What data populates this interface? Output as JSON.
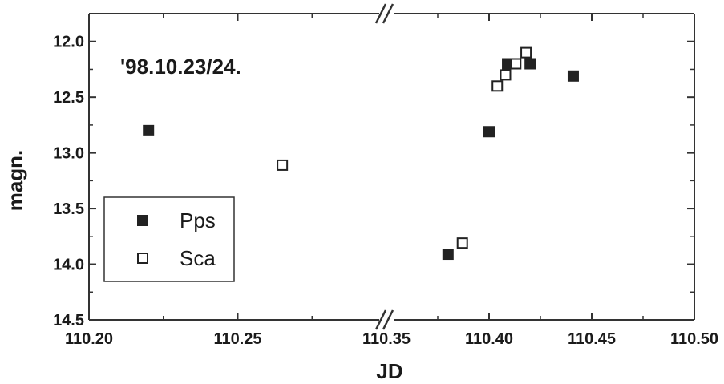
{
  "chart_data": {
    "type": "scatter",
    "title": "",
    "xlabel": "JD",
    "ylabel": "magn.",
    "annotation": "'98.10.23/24.",
    "x_segments": [
      {
        "xlim": [
          110.2,
          110.3
        ],
        "ticks": [
          110.2,
          110.25
        ],
        "tick_labels": [
          "110.20",
          "110.25"
        ]
      },
      {
        "xlim": [
          110.35,
          110.5
        ],
        "ticks": [
          110.35,
          110.4,
          110.45,
          110.5
        ],
        "tick_labels": [
          "110.35",
          "110.40",
          "110.45",
          "110.50"
        ]
      }
    ],
    "axis_break": true,
    "ylim": [
      14.5,
      11.75
    ],
    "y_inverted": true,
    "yticks": [
      12.0,
      12.5,
      13.0,
      13.5,
      14.0,
      14.5
    ],
    "ytick_labels": [
      "12.0",
      "12.5",
      "13.0",
      "13.5",
      "14.0",
      "14.5"
    ],
    "grid": false,
    "legend_position": "lower-left",
    "series": [
      {
        "name": "Pps",
        "marker": "filled-square",
        "color": "#222222",
        "points": [
          {
            "x": 110.22,
            "y": 12.8
          },
          {
            "x": 110.38,
            "y": 13.91
          },
          {
            "x": 110.4,
            "y": 12.81
          },
          {
            "x": 110.409,
            "y": 12.2
          },
          {
            "x": 110.42,
            "y": 12.2
          },
          {
            "x": 110.441,
            "y": 12.31
          }
        ]
      },
      {
        "name": "Sca",
        "marker": "open-square",
        "color": "#222222",
        "points": [
          {
            "x": 110.265,
            "y": 13.11
          },
          {
            "x": 110.387,
            "y": 13.81
          },
          {
            "x": 110.404,
            "y": 12.4
          },
          {
            "x": 110.408,
            "y": 12.3
          },
          {
            "x": 110.413,
            "y": 12.2
          },
          {
            "x": 110.418,
            "y": 12.1
          }
        ]
      }
    ]
  }
}
